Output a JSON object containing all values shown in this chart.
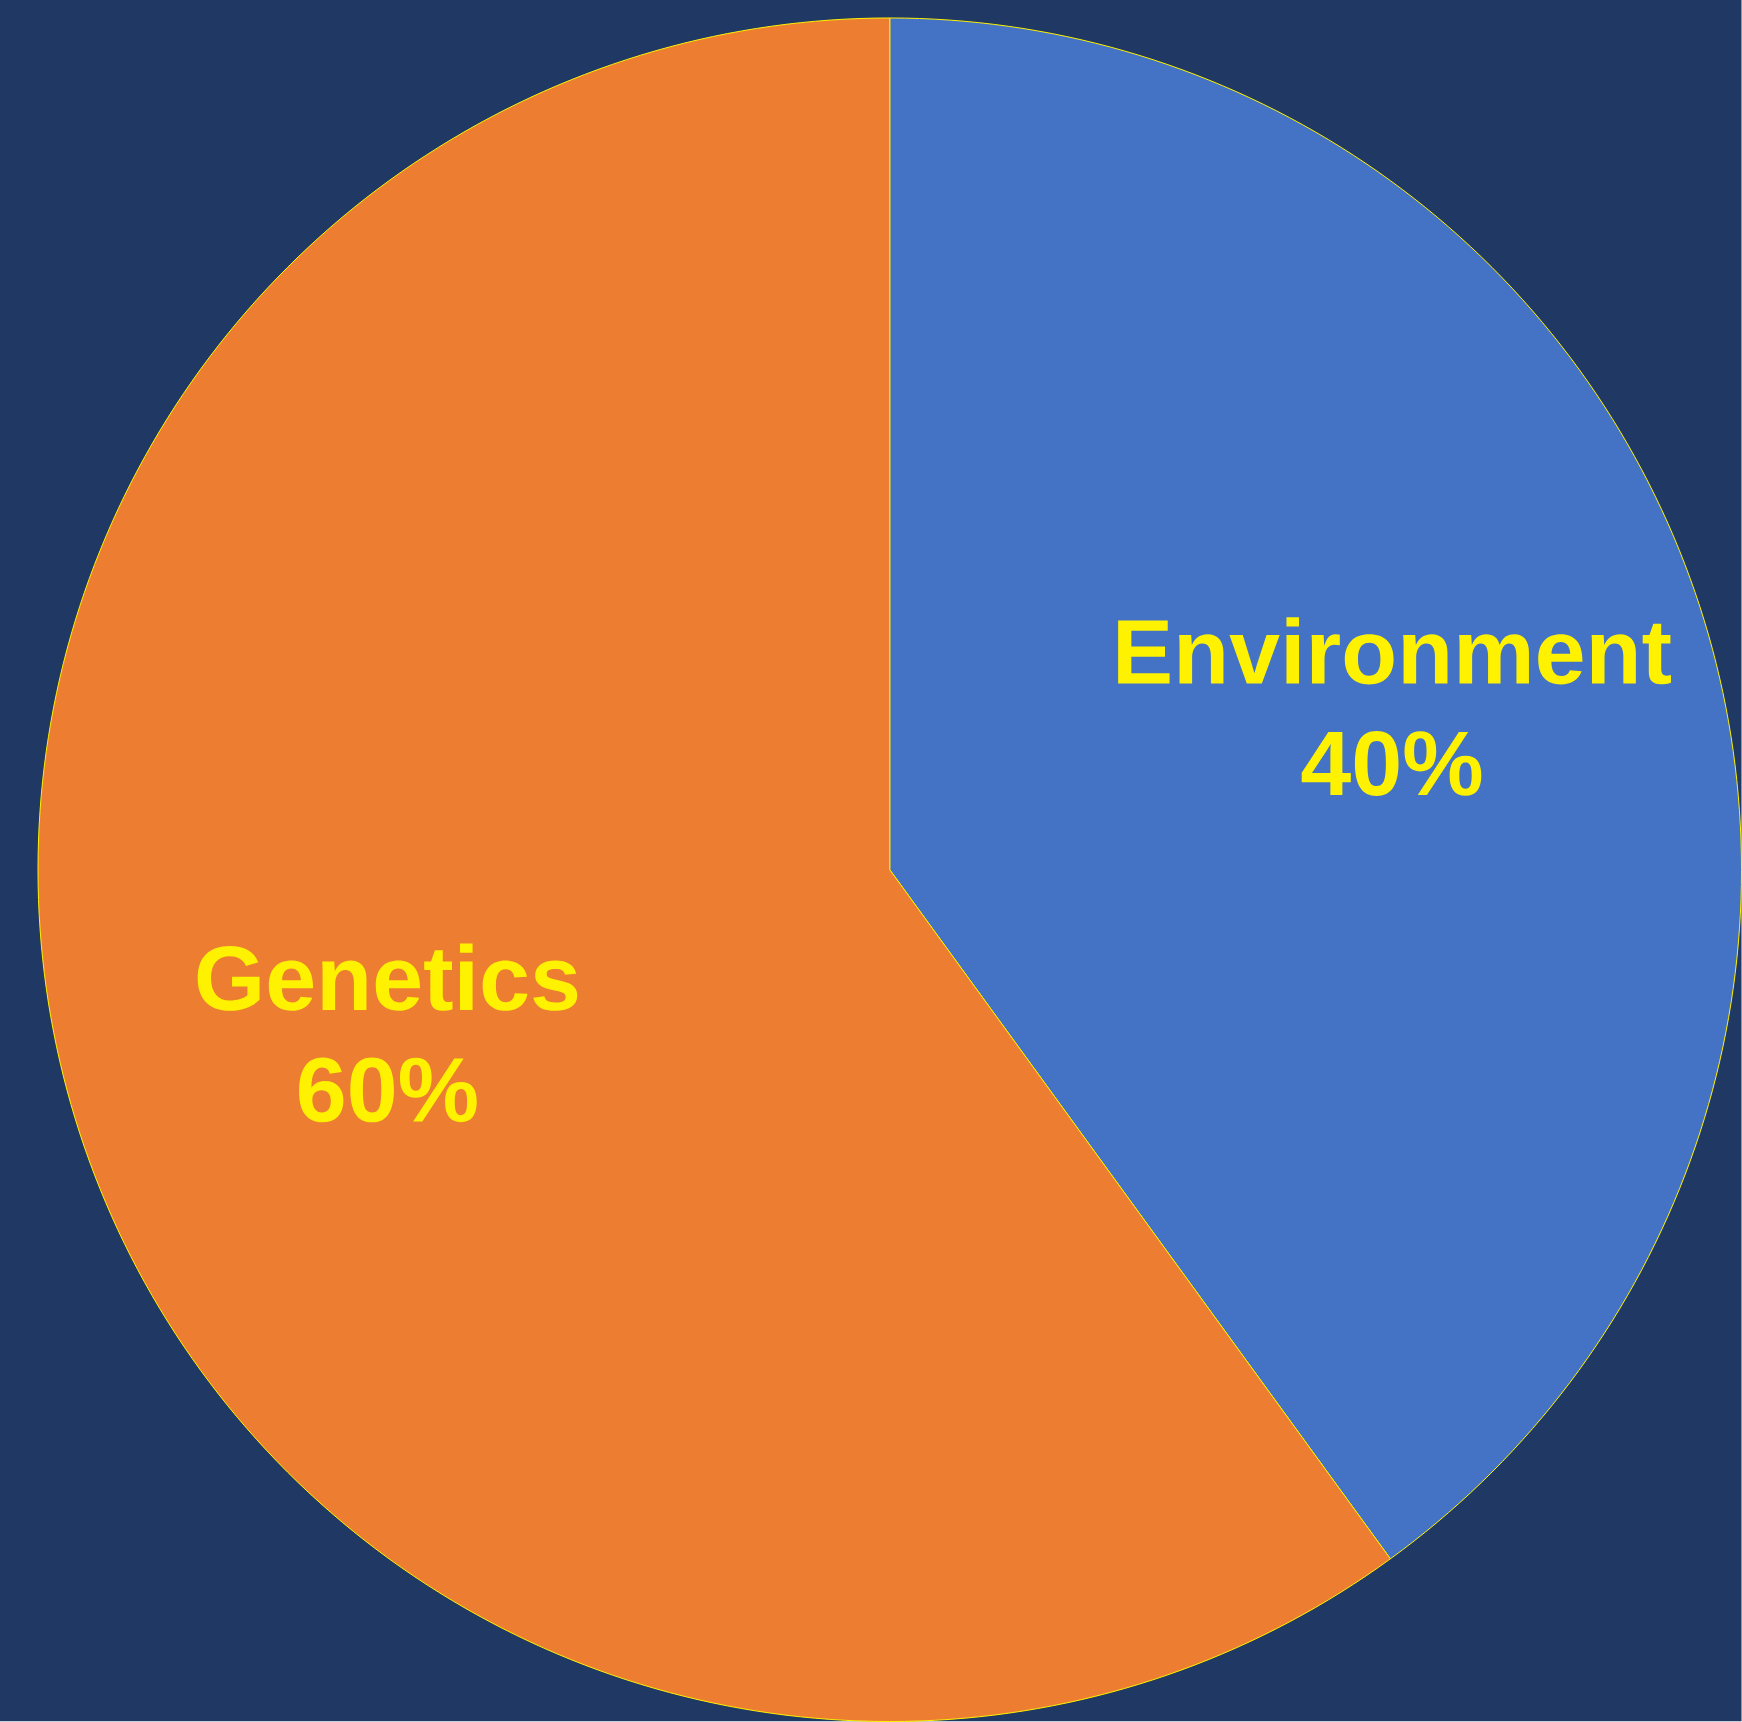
{
  "chart_data": {
    "type": "pie",
    "categories": [
      "Environment",
      "Genetics"
    ],
    "values": [
      40,
      60
    ],
    "colors": [
      "#4472c4",
      "#ed7d31"
    ],
    "value_labels": [
      "40%",
      "60%"
    ]
  }
}
